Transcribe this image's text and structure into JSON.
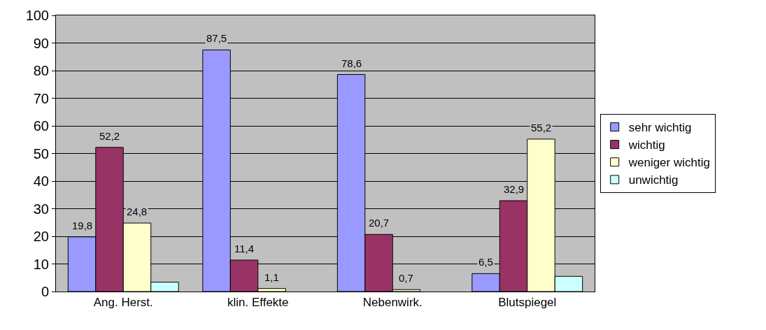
{
  "chart_data": {
    "type": "bar",
    "categories": [
      "Ang. Herst.",
      "klin. Effekte",
      "Nebenwirk.",
      "Blutspiegel"
    ],
    "series": [
      {
        "name": "sehr wichtig",
        "color": "#9999ff",
        "values": [
          19.8,
          87.5,
          78.6,
          6.5
        ],
        "value_labels": [
          "19,8",
          "87,5",
          "78,6",
          "6,5"
        ]
      },
      {
        "name": "wichtig",
        "color": "#993366",
        "values": [
          52.2,
          11.4,
          20.7,
          32.9
        ],
        "value_labels": [
          "52,2",
          "11,4",
          "20,7",
          "32,9"
        ]
      },
      {
        "name": "weniger wichtig",
        "color": "#ffffcc",
        "values": [
          24.8,
          1.1,
          0.7,
          55.2
        ],
        "value_labels": [
          "24,8",
          "1,1",
          "0,7",
          "55,2"
        ]
      },
      {
        "name": "unwichtig",
        "color": "#ccffff",
        "values": [
          3.4,
          null,
          null,
          5.5
        ],
        "value_labels": [
          null,
          null,
          null,
          null
        ]
      }
    ],
    "ylim": [
      0,
      100
    ],
    "yticks": [
      0,
      10,
      20,
      30,
      40,
      50,
      60,
      70,
      80,
      90,
      100
    ],
    "grid": "y",
    "legend": "right"
  }
}
